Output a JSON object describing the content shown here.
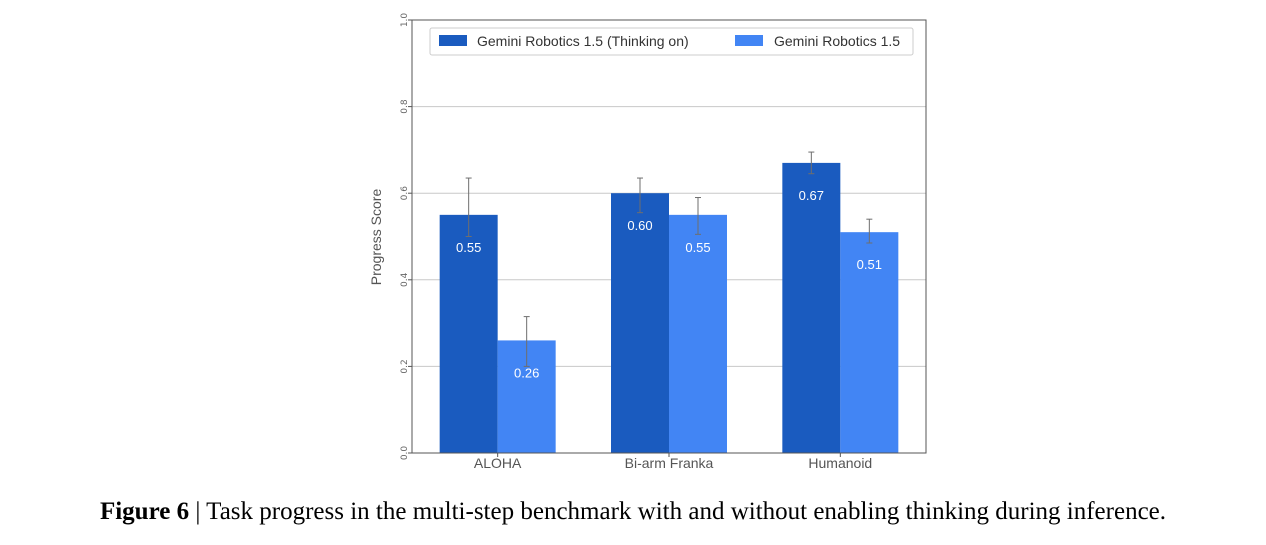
{
  "chart_data": {
    "type": "bar",
    "categories": [
      "ALOHA",
      "Bi-arm Franka",
      "Humanoid"
    ],
    "series": [
      {
        "name": "Gemini Robotics 1.5 (Thinking on)",
        "color": "#1a5bbf",
        "values": [
          0.55,
          0.6,
          0.67
        ],
        "labels": [
          "0.55",
          "0.60",
          "0.67"
        ],
        "error_low": [
          0.5,
          0.555,
          0.645
        ],
        "error_high": [
          0.635,
          0.635,
          0.695
        ]
      },
      {
        "name": "Gemini Robotics 1.5",
        "color": "#4285f4",
        "values": [
          0.26,
          0.55,
          0.51
        ],
        "labels": [
          "0.26",
          "0.55",
          "0.51"
        ],
        "error_low": [
          0.2,
          0.505,
          0.485
        ],
        "error_high": [
          0.315,
          0.59,
          0.54
        ]
      }
    ],
    "ylabel": "Progress Score",
    "xlabel": "",
    "ylim": [
      0,
      1.0
    ],
    "yticks": [
      "0.0",
      "0.2",
      "0.4",
      "0.6",
      "0.8",
      "1.0"
    ],
    "grid": true,
    "legend_position": "top"
  },
  "caption": {
    "label": "Figure 6",
    "separator": "|",
    "text": "Task progress in the multi-step benchmark with and without enabling thinking during inference."
  }
}
